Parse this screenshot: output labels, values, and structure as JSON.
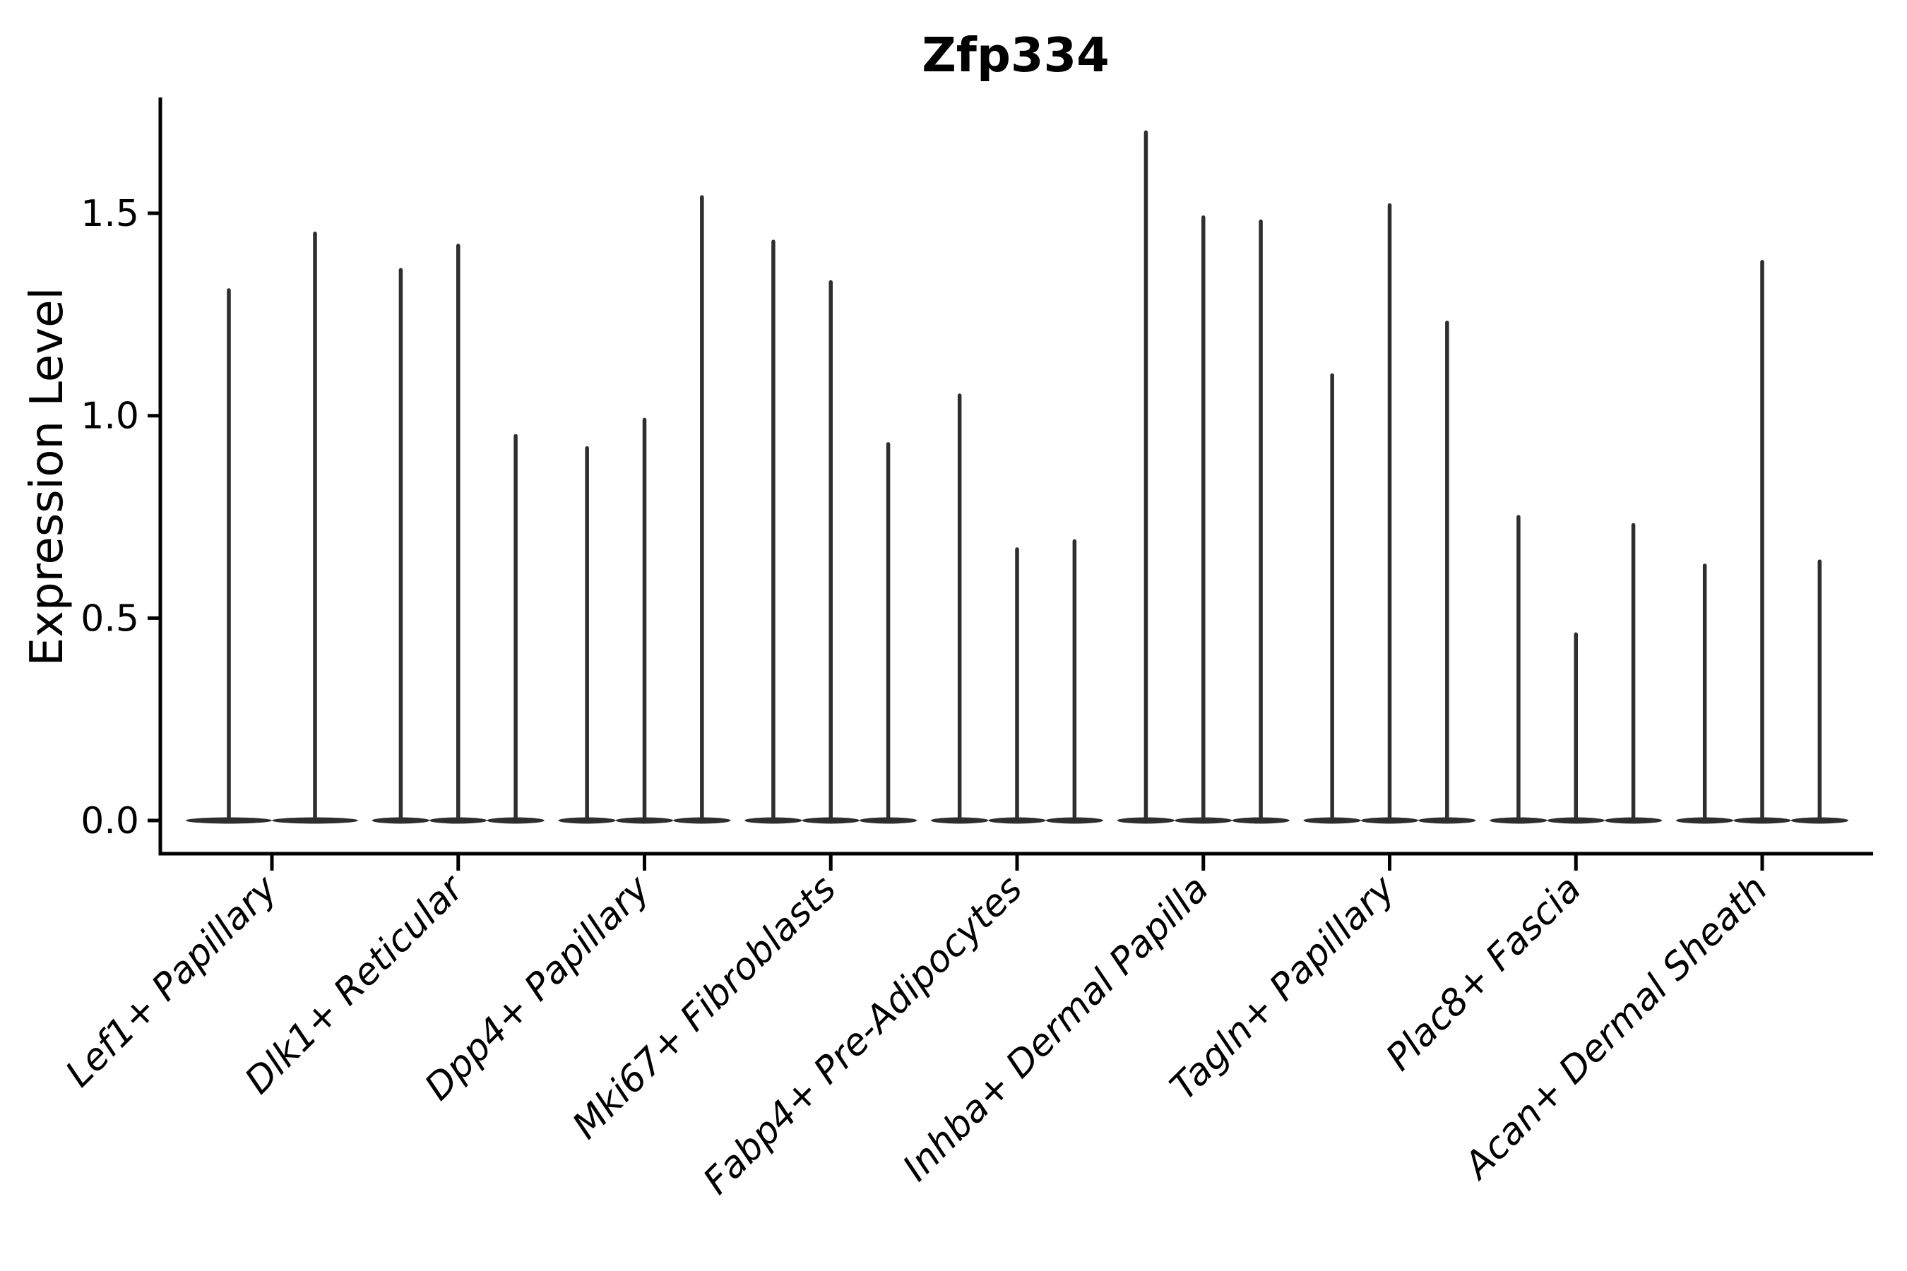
{
  "figure": {
    "background": "#ffffff",
    "violin_color": "#2e2e2e",
    "axis_color": "#000000"
  },
  "chart_data": {
    "type": "violin",
    "title": "Zfp334",
    "xlabel": "",
    "ylabel": "Expression Level",
    "ylim": [
      -0.08,
      1.78
    ],
    "grid": false,
    "legend": "none",
    "ytick_values": [
      0.0,
      0.5,
      1.0,
      1.5
    ],
    "ytick_labels": [
      "0.0",
      "0.5",
      "1.0",
      "1.5"
    ],
    "categories": [
      "Lef1+ Papillary",
      "Dlk1+ Reticular",
      "Dpp4+ Papillary",
      "Mki67+ Fibroblasts",
      "Fabp4+ Pre-Adipocytes",
      "Inhba+ Dermal Papilla",
      "Tagln+ Papillary",
      "Plac8+ Fascia",
      "Acan+ Dermal Sheath"
    ],
    "violin_max_expression_per_category": [
      [
        1.31,
        1.45
      ],
      [
        1.36,
        1.42,
        0.95
      ],
      [
        0.92,
        0.99,
        1.54
      ],
      [
        1.43,
        1.33,
        0.93
      ],
      [
        1.05,
        0.67,
        0.69
      ],
      [
        1.7,
        1.49,
        1.48
      ],
      [
        1.1,
        1.52,
        1.23
      ],
      [
        0.75,
        0.46,
        0.73
      ],
      [
        0.63,
        1.38,
        0.64
      ]
    ],
    "violin_shape_note": "each violin is a flat wide base at expression 0 with a thin spike up to its max value"
  }
}
